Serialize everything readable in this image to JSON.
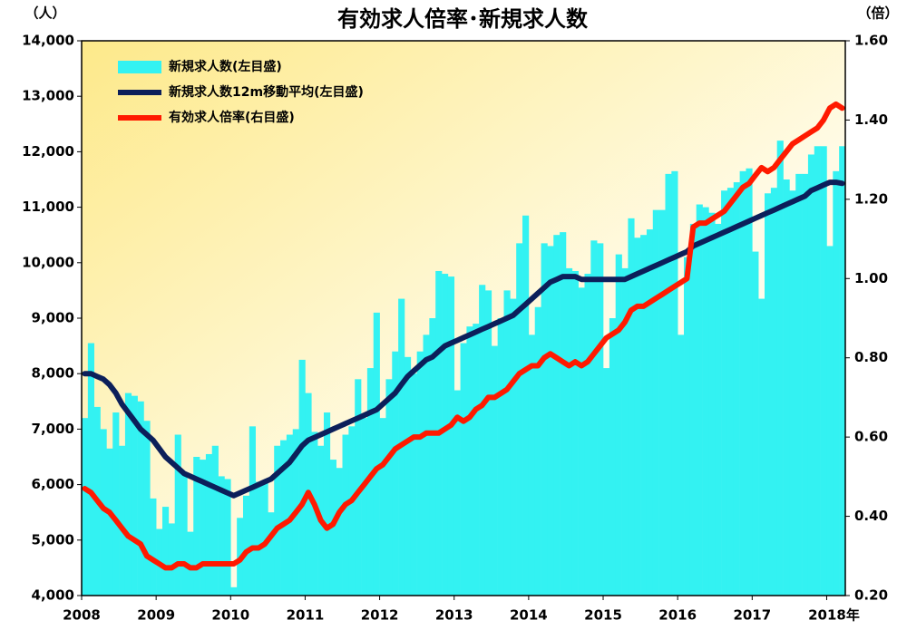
{
  "chart_data": {
    "type": "bar_line",
    "title": "有効求人倍率･新規求人数",
    "y_title": "（人）",
    "y2_title": "（倍）",
    "categories": [
      "2008",
      null,
      null,
      null,
      null,
      null,
      null,
      null,
      null,
      null,
      null,
      null,
      "2009",
      null,
      null,
      null,
      null,
      null,
      null,
      null,
      null,
      null,
      null,
      null,
      "2010",
      null,
      null,
      null,
      null,
      null,
      null,
      null,
      null,
      null,
      null,
      null,
      "2011",
      null,
      null,
      null,
      null,
      null,
      null,
      null,
      null,
      null,
      null,
      null,
      "2012",
      null,
      null,
      null,
      null,
      null,
      null,
      null,
      null,
      null,
      null,
      null,
      "2013",
      null,
      null,
      null,
      null,
      null,
      null,
      null,
      null,
      null,
      null,
      null,
      "2014",
      null,
      null,
      null,
      null,
      null,
      null,
      null,
      null,
      null,
      null,
      null,
      "2015",
      null,
      null,
      null,
      null,
      null,
      null,
      null,
      null,
      null,
      null,
      null,
      "2016",
      null,
      null,
      null,
      null,
      null,
      null,
      null,
      null,
      null,
      null,
      null,
      "2017",
      null,
      null,
      null,
      null,
      null,
      null,
      null,
      null,
      null,
      null,
      null,
      "2018年",
      null,
      null
    ],
    "series": [
      {
        "name": "新規求人数(左目盛)",
        "type": "bar",
        "color": "#33f2f2",
        "values": [
          7200,
          8550,
          7400,
          7000,
          6650,
          7300,
          6700,
          7650,
          7600,
          7500,
          7150,
          5750,
          5200,
          5600,
          5300,
          6900,
          6200,
          5150,
          6500,
          6450,
          6550,
          6700,
          6150,
          6100,
          4150,
          5400,
          5800,
          7050,
          6050,
          6050,
          5500,
          6700,
          6800,
          6900,
          7000,
          8250,
          7650,
          6950,
          6700,
          7300,
          6450,
          6300,
          6900,
          7050,
          7900,
          7200,
          8100,
          9100,
          7200,
          7900,
          8400,
          9350,
          8300,
          8000,
          8400,
          8700,
          9000,
          9850,
          9800,
          9750,
          7700,
          8550,
          8850,
          8900,
          9600,
          9500,
          8500,
          9000,
          9500,
          9350,
          10350,
          10850,
          8700,
          9200,
          10350,
          10300,
          10500,
          10550,
          9900,
          9850,
          9550,
          9800,
          10400,
          10350,
          8100,
          9000,
          10150,
          9900,
          10800,
          10450,
          10500,
          10600,
          10950,
          10950,
          11600,
          11650,
          8700,
          10100,
          10700,
          11050,
          11000,
          10900,
          10700,
          11300,
          11350,
          11450,
          11650,
          11700,
          10200,
          9350,
          11250,
          11350,
          12200,
          11500,
          11300,
          11600,
          11600,
          11950,
          12100,
          12100,
          10300,
          11650,
          12100
        ]
      },
      {
        "name": "新規求人数12m移動平均(左目盛)",
        "type": "line",
        "color": "#0c1f5a",
        "values": [
          8000,
          8000,
          7950,
          7900,
          7800,
          7650,
          7450,
          7300,
          7150,
          7000,
          6900,
          6800,
          6650,
          6500,
          6400,
          6300,
          6200,
          6150,
          6100,
          6050,
          6000,
          5950,
          5900,
          5850,
          5800,
          5850,
          5900,
          5950,
          6000,
          6050,
          6100,
          6200,
          6300,
          6400,
          6550,
          6700,
          6800,
          6850,
          6900,
          6950,
          7000,
          7050,
          7100,
          7150,
          7200,
          7250,
          7300,
          7350,
          7450,
          7550,
          7650,
          7800,
          7950,
          8050,
          8150,
          8250,
          8300,
          8400,
          8500,
          8550,
          8600,
          8650,
          8700,
          8750,
          8800,
          8850,
          8900,
          8950,
          9000,
          9050,
          9150,
          9250,
          9350,
          9450,
          9550,
          9650,
          9700,
          9750,
          9750,
          9750,
          9700,
          9700,
          9700,
          9700,
          9700,
          9700,
          9700,
          9700,
          9750,
          9800,
          9850,
          9900,
          9950,
          10000,
          10050,
          10100,
          10150,
          10200,
          10300,
          10350,
          10400,
          10450,
          10500,
          10550,
          10600,
          10650,
          10700,
          10750,
          10800,
          10850,
          10900,
          10950,
          11000,
          11050,
          11100,
          11150,
          11200,
          11300,
          11350,
          11400,
          11450,
          11450,
          11430
        ]
      },
      {
        "name": "有効求人倍率(右目盛)",
        "type": "line",
        "axis": "y2",
        "color": "#ff1a00",
        "values": [
          0.47,
          0.46,
          0.44,
          0.42,
          0.41,
          0.39,
          0.37,
          0.35,
          0.34,
          0.33,
          0.3,
          0.29,
          0.28,
          0.27,
          0.27,
          0.28,
          0.28,
          0.27,
          0.27,
          0.28,
          0.28,
          0.28,
          0.28,
          0.28,
          0.28,
          0.29,
          0.31,
          0.32,
          0.32,
          0.33,
          0.35,
          0.37,
          0.38,
          0.39,
          0.41,
          0.43,
          0.46,
          0.43,
          0.39,
          0.37,
          0.38,
          0.41,
          0.43,
          0.44,
          0.46,
          0.48,
          0.5,
          0.52,
          0.53,
          0.55,
          0.57,
          0.58,
          0.59,
          0.6,
          0.6,
          0.61,
          0.61,
          0.61,
          0.62,
          0.63,
          0.65,
          0.64,
          0.65,
          0.67,
          0.68,
          0.7,
          0.7,
          0.71,
          0.72,
          0.74,
          0.76,
          0.77,
          0.78,
          0.78,
          0.8,
          0.81,
          0.8,
          0.79,
          0.78,
          0.79,
          0.78,
          0.79,
          0.81,
          0.83,
          0.85,
          0.86,
          0.87,
          0.89,
          0.92,
          0.93,
          0.93,
          0.94,
          0.95,
          0.96,
          0.97,
          0.98,
          0.99,
          1.0,
          1.13,
          1.14,
          1.14,
          1.15,
          1.16,
          1.17,
          1.19,
          1.21,
          1.23,
          1.24,
          1.26,
          1.28,
          1.27,
          1.28,
          1.3,
          1.32,
          1.34,
          1.35,
          1.36,
          1.37,
          1.38,
          1.4,
          1.43,
          1.44,
          1.43
        ]
      }
    ],
    "ylim": [
      4000,
      14000
    ],
    "yticks": [
      {
        "value": 4000,
        "label": "4,000"
      },
      {
        "value": 5000,
        "label": "5,000"
      },
      {
        "value": 6000,
        "label": "6,000"
      },
      {
        "value": 7000,
        "label": "7,000"
      },
      {
        "value": 8000,
        "label": "8,000"
      },
      {
        "value": 9000,
        "label": "9,000"
      },
      {
        "value": 10000,
        "label": "10,000"
      },
      {
        "value": 11000,
        "label": "11,000"
      },
      {
        "value": 12000,
        "label": "12,000"
      },
      {
        "value": 13000,
        "label": "13,000"
      },
      {
        "value": 14000,
        "label": "14,000"
      }
    ],
    "y2lim": [
      0.2,
      1.6
    ],
    "y2ticks": [
      {
        "value": 0.2,
        "label": "0.20"
      },
      {
        "value": 0.4,
        "label": "0.40"
      },
      {
        "value": 0.6,
        "label": "0.60"
      },
      {
        "value": 0.8,
        "label": "0.80"
      },
      {
        "value": 1.0,
        "label": "1.00"
      },
      {
        "value": 1.2,
        "label": "1.20"
      },
      {
        "value": 1.4,
        "label": "1.40"
      },
      {
        "value": 1.6,
        "label": "1.60"
      }
    ],
    "legend": "upper left"
  }
}
